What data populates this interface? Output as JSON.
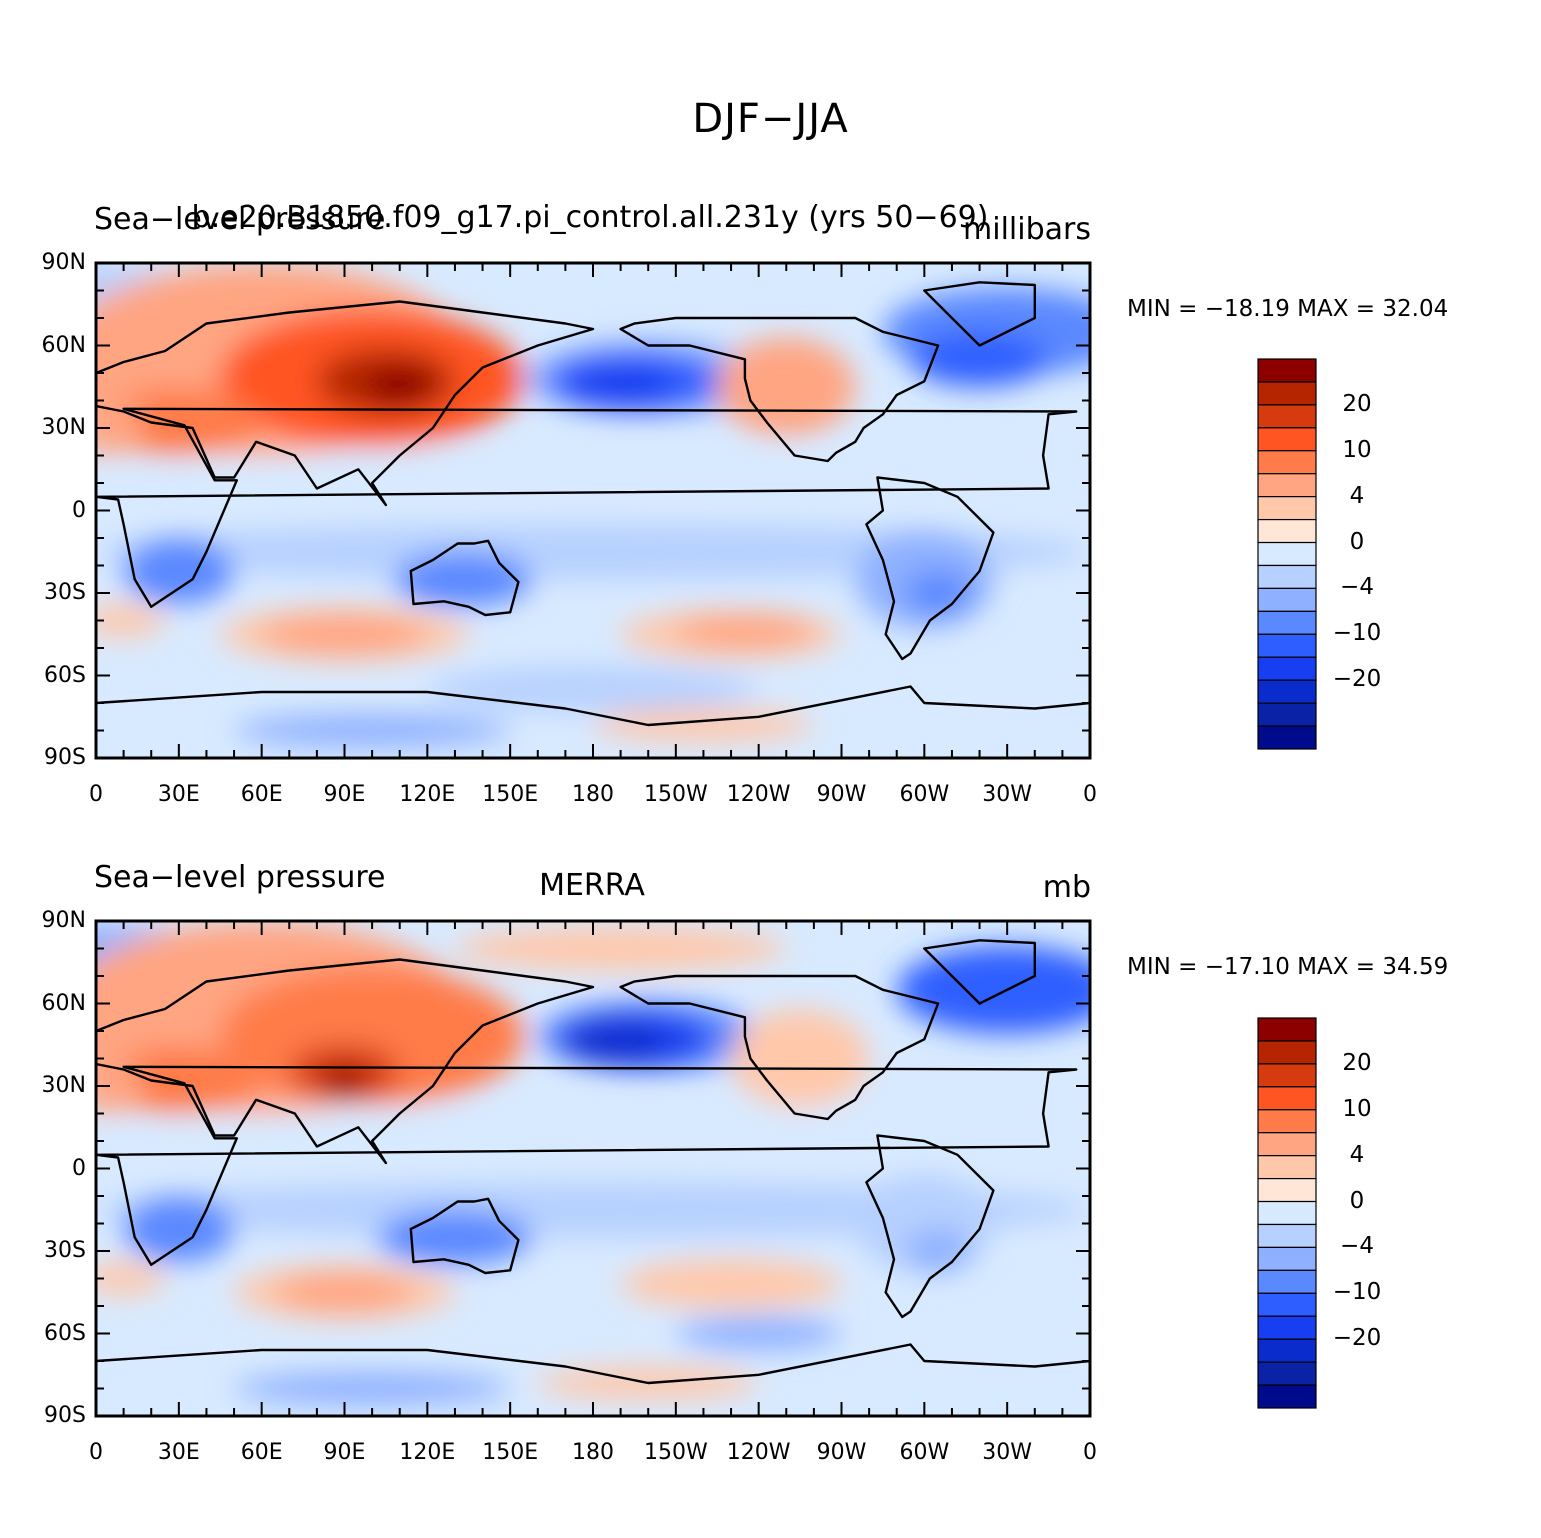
{
  "title": "DJF−JJA",
  "colorbar": {
    "levels": [
      "20",
      "10",
      "4",
      "0",
      "−4",
      "−10",
      "−20"
    ],
    "colors": [
      "#8c0000",
      "#b52500",
      "#d63b0f",
      "#ff5522",
      "#ff7b4a",
      "#ffa582",
      "#ffc8aa",
      "#ffe6d6",
      "#d8eaff",
      "#b6d0ff",
      "#8eb0ff",
      "#5a88ff",
      "#2e5eff",
      "#173ef0",
      "#0b2ccd",
      "#0a22a5",
      "#000a8c"
    ]
  },
  "panels": [
    {
      "left_title": "Sea−level pressure",
      "center_title": "b.e20.B1850.f09_g17.pi_control.all.231y (yrs 50−69)",
      "right_title": "millibars",
      "min_max": "MIN = −18.19  MAX =   32.04"
    },
    {
      "left_title": "Sea−level pressure",
      "center_title": "MERRA",
      "right_title": "mb",
      "min_max": "MIN = −17.10  MAX =   34.59"
    }
  ],
  "axes": {
    "lat_labels": [
      "90N",
      "60N",
      "30N",
      "0",
      "30S",
      "60S",
      "90S"
    ],
    "lon_labels": [
      "0",
      "30E",
      "60E",
      "90E",
      "120E",
      "150E",
      "180",
      "150W",
      "120W",
      "90W",
      "60W",
      "30W",
      "0"
    ]
  },
  "chart_data": [
    {
      "type": "heatmap",
      "title": "Sea−level pressure (DJF−JJA) b.e20.B1850.f09_g17.pi_control.all.231y (yrs 50−69)",
      "units": "millibars",
      "x_range_lon": [
        0,
        360
      ],
      "y_range_lat": [
        -90,
        90
      ],
      "min": -18.19,
      "max": 32.04,
      "levels": [
        -20,
        -10,
        -4,
        0,
        4,
        10,
        20
      ],
      "features": [
        {
          "region": "Siberia / Central Asia",
          "sign": "positive",
          "peak": 30
        },
        {
          "region": "North Pacific (Aleutian)",
          "sign": "negative",
          "peak": -18
        },
        {
          "region": "North Atlantic (Icelandic)",
          "sign": "negative",
          "peak": -12
        },
        {
          "region": "North America",
          "sign": "positive",
          "peak": 12
        },
        {
          "region": "Australia",
          "sign": "negative",
          "peak": -10
        },
        {
          "region": "Southern Africa",
          "sign": "negative",
          "peak": -10
        },
        {
          "region": "South America",
          "sign": "negative",
          "peak": -10
        },
        {
          "region": "South Indian Ocean 45S",
          "sign": "positive",
          "peak": 8
        },
        {
          "region": "South Pacific 45S",
          "sign": "positive",
          "peak": 8
        }
      ]
    },
    {
      "type": "heatmap",
      "title": "Sea−level pressure (DJF−JJA) MERRA",
      "units": "mb",
      "x_range_lon": [
        0,
        360
      ],
      "y_range_lat": [
        -90,
        90
      ],
      "min": -17.1,
      "max": 34.59,
      "levels": [
        -20,
        -10,
        -4,
        0,
        4,
        10,
        20
      ],
      "features": [
        {
          "region": "Siberia / Central Asia",
          "sign": "positive",
          "peak": 32
        },
        {
          "region": "North Pacific (Aleutian)",
          "sign": "negative",
          "peak": -17
        },
        {
          "region": "North Atlantic (Icelandic)",
          "sign": "negative",
          "peak": -12
        },
        {
          "region": "Arctic Ocean",
          "sign": "positive",
          "peak": 8
        },
        {
          "region": "North America",
          "sign": "positive",
          "peak": 8
        },
        {
          "region": "Australia",
          "sign": "negative",
          "peak": -10
        },
        {
          "region": "Southern Africa",
          "sign": "negative",
          "peak": -10
        },
        {
          "region": "South America",
          "sign": "negative",
          "peak": -8
        },
        {
          "region": "South Indian Ocean 45S",
          "sign": "positive",
          "peak": 8
        },
        {
          "region": "South Pacific 45S",
          "sign": "positive",
          "peak": 6
        }
      ]
    }
  ]
}
